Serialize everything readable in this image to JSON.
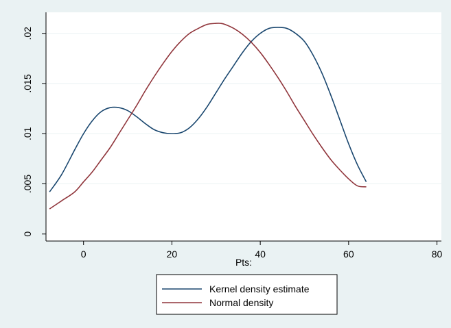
{
  "chart_data": {
    "type": "line",
    "title": "",
    "xlabel": "Pts:",
    "ylabel": "",
    "xlim": [
      -8.5,
      81
    ],
    "ylim": [
      -0.0007,
      0.0221
    ],
    "xticks": [
      0,
      20,
      40,
      60,
      80
    ],
    "xtick_labels": [
      "0",
      "20",
      "40",
      "60",
      "80"
    ],
    "yticks": [
      0,
      0.005,
      0.01,
      0.015,
      0.02
    ],
    "ytick_labels": [
      "0",
      ".005",
      ".01",
      ".015",
      ".02"
    ],
    "grid": "horizontal",
    "legend_position": "bottom",
    "series": [
      {
        "name": "Kernel density estimate",
        "color": "#1a476f",
        "x": [
          -7.7,
          -5,
          -2,
          0,
          2,
          4,
          6,
          8,
          10,
          12,
          14,
          16,
          18,
          20,
          22,
          24,
          26,
          28,
          30,
          32,
          34,
          36,
          38,
          40,
          42,
          44,
          46,
          48,
          50,
          52,
          54,
          56,
          58,
          60,
          62,
          64
        ],
        "y": [
          0.0042,
          0.0059,
          0.0084,
          0.01,
          0.0113,
          0.0122,
          0.0126,
          0.0126,
          0.0123,
          0.0117,
          0.011,
          0.0104,
          0.0101,
          0.01,
          0.0101,
          0.0106,
          0.0115,
          0.0127,
          0.0141,
          0.0155,
          0.0168,
          0.0181,
          0.0192,
          0.02,
          0.0205,
          0.0206,
          0.0205,
          0.02,
          0.0192,
          0.0178,
          0.016,
          0.0138,
          0.0114,
          0.009,
          0.0069,
          0.0052
        ]
      },
      {
        "name": "Normal density",
        "color": "#90353b",
        "x": [
          -7.7,
          -5,
          -2,
          0,
          2,
          4,
          6,
          8,
          10,
          12,
          14,
          16,
          18,
          20,
          22,
          24,
          26,
          28,
          30,
          31,
          32,
          34,
          36,
          38,
          40,
          42,
          44,
          46,
          48,
          50,
          52,
          54,
          56,
          58,
          60,
          62,
          64
        ],
        "y": [
          0.0025,
          0.0033,
          0.0042,
          0.0052,
          0.0062,
          0.0074,
          0.0086,
          0.01,
          0.0114,
          0.0128,
          0.0143,
          0.0157,
          0.017,
          0.0182,
          0.0192,
          0.02,
          0.0205,
          0.0209,
          0.021,
          0.021,
          0.0209,
          0.0205,
          0.0199,
          0.0191,
          0.0181,
          0.0169,
          0.0156,
          0.0142,
          0.0127,
          0.0113,
          0.0099,
          0.0086,
          0.0074,
          0.0064,
          0.0055,
          0.0048,
          0.0047
        ]
      }
    ]
  }
}
